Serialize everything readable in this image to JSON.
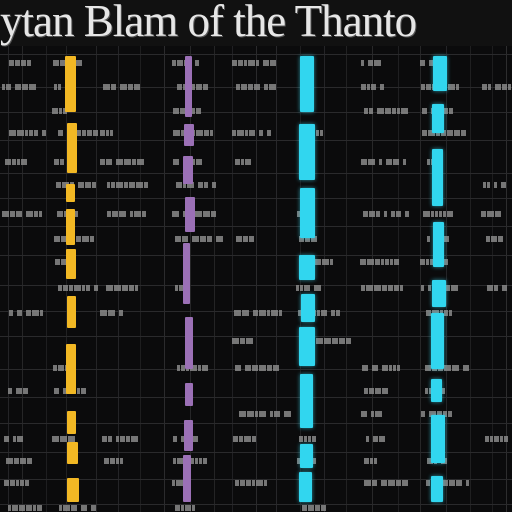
{
  "header": {
    "title": "ytan Blam of the Thanto"
  },
  "colors": {
    "background": "#0b0b0c",
    "grid_line": "#2e2e30",
    "label_gray": "#8a8a8a",
    "yellow": "#f2b824",
    "purple": "#9b70b6",
    "cyan": "#31d6ef"
  },
  "columns": [
    {
      "color": "yellow"
    },
    {
      "color": "purple"
    },
    {
      "color": "cyan"
    },
    {
      "color": "cyan"
    }
  ]
}
